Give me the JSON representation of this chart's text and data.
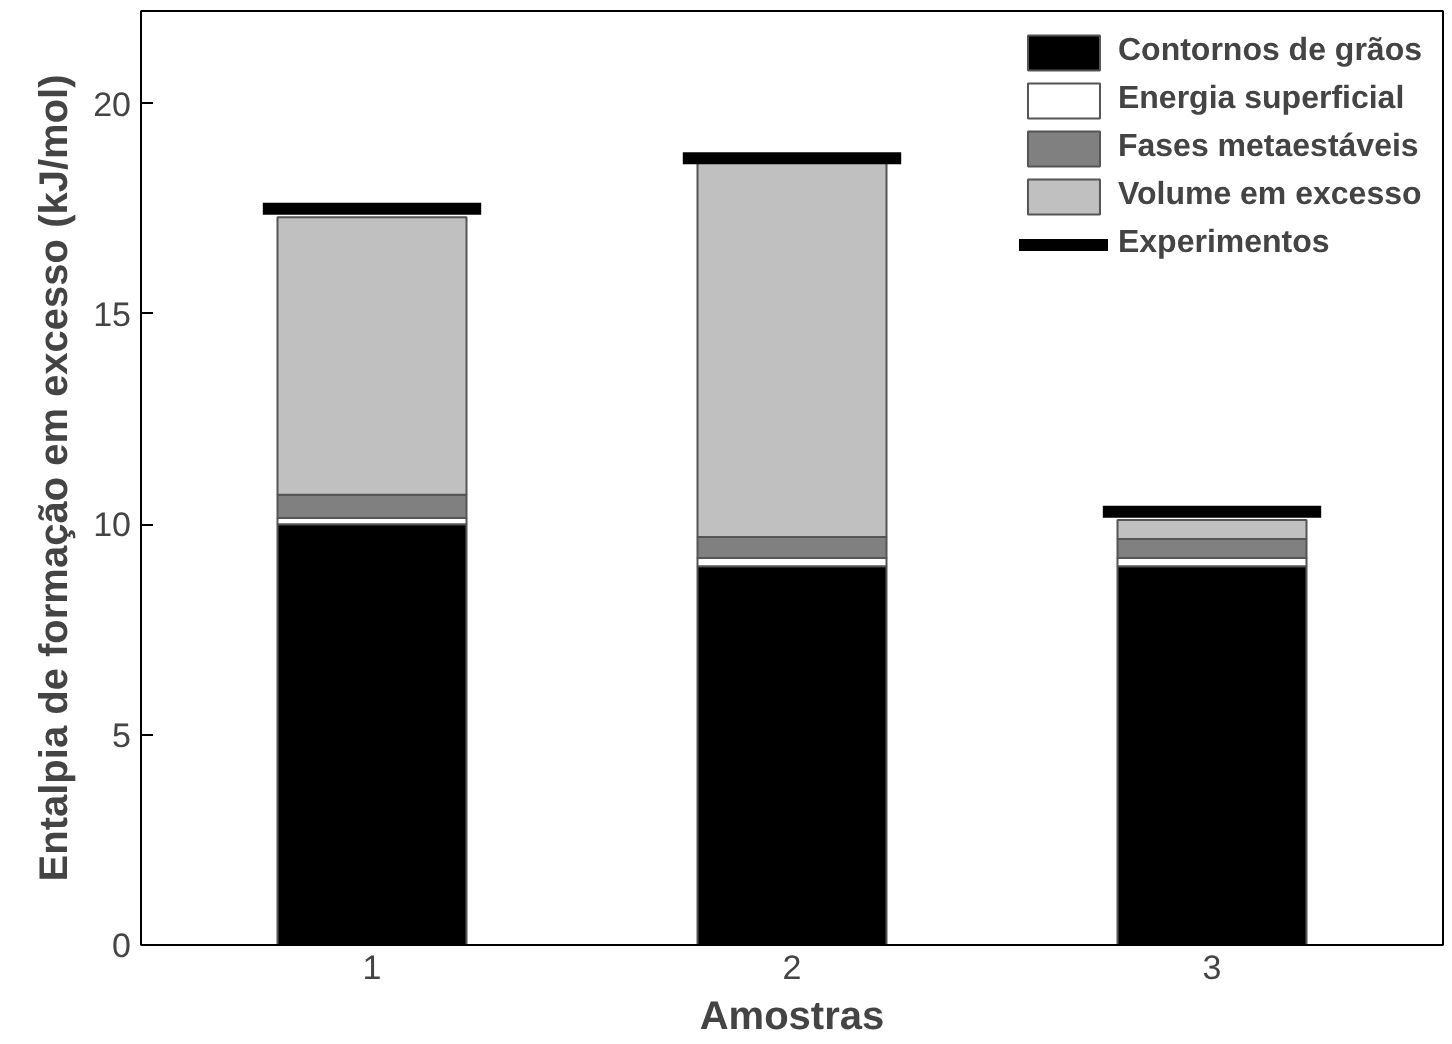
{
  "chart_data": {
    "type": "bar",
    "stacked": true,
    "xlabel": "Amostras",
    "ylabel": "Entalpia de formação em excesso (kJ/mol)",
    "x": [
      1,
      2,
      3
    ],
    "xlim": [
      0.45,
      3.55
    ],
    "xticks": [
      1,
      2,
      3
    ],
    "series": [
      {
        "name": "Contornos de grãos",
        "color": "#000000",
        "values": [
          10.0,
          9.0,
          9.0
        ]
      },
      {
        "name": "Energia superficial",
        "color": "#ffffff",
        "values": [
          0.15,
          0.2,
          0.2
        ]
      },
      {
        "name": "Fases metaestáveis",
        "color": "#808080",
        "values": [
          0.55,
          0.5,
          0.45
        ]
      },
      {
        "name": "Volume em excesso",
        "color": "#c0c0c0",
        "values": [
          6.6,
          9.0,
          0.45
        ]
      },
      {
        "name": "Experimentos",
        "type": "line",
        "color": "#000000",
        "x": [
          0.74,
          1.26
        ],
        "values": [
          17.5,
          17.5
        ]
      },
      {
        "type": "line",
        "color": "#000000",
        "x": [
          1.74,
          2.26
        ],
        "values": [
          18.7,
          18.7
        ]
      },
      {
        "type": "line",
        "color": "#000000",
        "x": [
          2.74,
          3.26
        ],
        "values": [
          10.3,
          10.3
        ]
      }
    ],
    "ylim": [
      0,
      22.2
    ],
    "yticks": [
      0,
      5,
      10,
      15,
      20
    ],
    "grid": false,
    "legend": "top right"
  }
}
